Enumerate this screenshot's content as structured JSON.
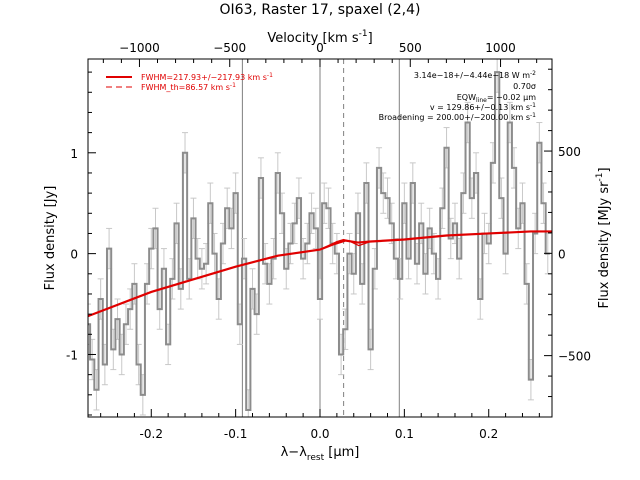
{
  "chart_data": {
    "type": "line",
    "title": "OI63, Raster 17, spaxel (2,4)",
    "xlabel": "λ−λ",
    "xlabel_sub": "rest",
    "xlabel_unit": " [μm]",
    "ylabel": "Flux density [Jy]",
    "top_axis_label": "Velocity [km s",
    "top_axis_label_sup": "-1",
    "top_axis_label_tail": "]",
    "right_axis_label": "Flux density [MJy sr",
    "right_axis_label_sup": "-1",
    "right_axis_label_tail": "]",
    "xlim": [
      -0.275,
      0.275
    ],
    "ylim": [
      -1.62,
      1.93
    ],
    "top_xlim": [
      -1285,
      1285
    ],
    "right_ylim": [
      -800,
      950
    ],
    "x_ticks": [
      "-0.2",
      "-0.1",
      "0.0",
      "0.1",
      "0.2"
    ],
    "x_tick_values": [
      -0.2,
      -0.1,
      0.0,
      0.1,
      0.2
    ],
    "y_ticks": [
      "-1",
      "0",
      "1"
    ],
    "y_tick_values": [
      -1,
      0,
      1
    ],
    "top_ticks": [
      "−1000",
      "−500",
      "0",
      "500",
      "1000"
    ],
    "top_tick_values": [
      -1000,
      -500,
      0,
      500,
      1000
    ],
    "right_ticks": [
      "−500",
      "0",
      "500"
    ],
    "right_tick_values": [
      -500,
      0,
      500
    ],
    "vertical_lines_solid": [
      -0.092,
      0.0,
      0.094
    ],
    "vertical_lines_dashed": [
      0.028
    ],
    "legend": [
      {
        "label": "FWHM=217.93+/−217.93 km s",
        "sup": "-1",
        "style": "solid"
      },
      {
        "label": "FWHM_th=86.57 km s",
        "sup": "-1",
        "style": "dashed"
      }
    ],
    "annotations": [
      "3.14e−18+/−4.44e−18 W m",
      "0.70σ",
      "EQW",
      "= −0.02 μm",
      "v = 129.86+/−0.13 km s",
      "Broadening = 200.00+/−200.00 km s"
    ],
    "annotation_sups": [
      "-2",
      "-1",
      "-1"
    ],
    "annotation_sub": "line",
    "colors": {
      "data": "#8c8c8c",
      "errorbar": "#c8c8c8",
      "model": "#e00000",
      "axis": "#000000",
      "grid": "#808080"
    },
    "series": [
      {
        "name": "Flux density",
        "style": "step",
        "x": [
          -0.275,
          -0.27,
          -0.265,
          -0.26,
          -0.255,
          -0.25,
          -0.245,
          -0.24,
          -0.235,
          -0.23,
          -0.225,
          -0.22,
          -0.215,
          -0.21,
          -0.205,
          -0.2,
          -0.195,
          -0.19,
          -0.185,
          -0.18,
          -0.175,
          -0.17,
          -0.165,
          -0.16,
          -0.155,
          -0.15,
          -0.145,
          -0.14,
          -0.135,
          -0.13,
          -0.125,
          -0.12,
          -0.115,
          -0.11,
          -0.105,
          -0.1,
          -0.095,
          -0.09,
          -0.085,
          -0.08,
          -0.075,
          -0.07,
          -0.065,
          -0.06,
          -0.055,
          -0.05,
          -0.045,
          -0.04,
          -0.035,
          -0.03,
          -0.025,
          -0.02,
          -0.015,
          -0.01,
          -0.005,
          0.0,
          0.005,
          0.01,
          0.015,
          0.02,
          0.025,
          0.03,
          0.035,
          0.04,
          0.045,
          0.05,
          0.055,
          0.06,
          0.065,
          0.07,
          0.075,
          0.08,
          0.085,
          0.09,
          0.095,
          0.1,
          0.105,
          0.11,
          0.115,
          0.12,
          0.125,
          0.13,
          0.135,
          0.14,
          0.145,
          0.15,
          0.155,
          0.16,
          0.165,
          0.17,
          0.175,
          0.18,
          0.185,
          0.19,
          0.195,
          0.2,
          0.205,
          0.21,
          0.215,
          0.22,
          0.225,
          0.23,
          0.235,
          0.24,
          0.245,
          0.25,
          0.255,
          0.26,
          0.265,
          0.27
        ],
        "y": [
          -0.7,
          -1.05,
          -1.35,
          -0.45,
          -1.1,
          0.05,
          -0.95,
          -0.65,
          -1.0,
          -0.7,
          -0.55,
          -0.3,
          -1.1,
          -1.4,
          -0.3,
          0.05,
          0.25,
          -0.55,
          -0.15,
          -0.9,
          -0.25,
          0.3,
          -0.35,
          1.0,
          -0.25,
          0.35,
          -0.05,
          -0.15,
          -0.1,
          0.5,
          0.0,
          -0.45,
          0.1,
          0.45,
          0.25,
          0.6,
          -0.7,
          -0.05,
          -1.55,
          -0.35,
          -0.6,
          0.75,
          -0.1,
          -0.3,
          -0.05,
          0.8,
          0.4,
          -0.15,
          0.1,
          0.3,
          0.55,
          -0.05,
          0.1,
          0.4,
          0.25,
          -0.45,
          0.5,
          0.45,
          0.1,
          0.0,
          -1.0,
          -0.75,
          0.0,
          -0.2,
          0.4,
          -0.3,
          0.7,
          -0.95,
          -0.15,
          0.85,
          0.6,
          0.55,
          0.3,
          -0.05,
          -0.25,
          0.5,
          -0.05,
          0.7,
          -0.1,
          0.3,
          -0.2,
          0.25,
          0.0,
          -0.25,
          0.45,
          1.05,
          0.15,
          0.3,
          -0.05,
          0.6,
          1.3,
          0.55,
          0.8,
          -0.45,
          0.2,
          0.1,
          0.9,
          1.8,
          0.55,
          0.0,
          1.3,
          0.85,
          0.25,
          0.5,
          -0.3,
          -1.25,
          0.2,
          1.1,
          0.5,
          0.0
        ],
        "y_err": 0.2
      },
      {
        "name": "Model",
        "style": "line",
        "x": [
          -0.275,
          -0.2,
          -0.1,
          -0.05,
          0.0,
          0.015,
          0.03,
          0.045,
          0.06,
          0.1,
          0.15,
          0.2,
          0.25,
          0.275
        ],
        "y": [
          -0.62,
          -0.38,
          -0.13,
          -0.02,
          0.04,
          0.09,
          0.13,
          0.11,
          0.12,
          0.14,
          0.18,
          0.2,
          0.22,
          0.22
        ]
      },
      {
        "name": "Line profile",
        "style": "line",
        "x": [
          0.0,
          0.01,
          0.02,
          0.028,
          0.036,
          0.046,
          0.06
        ],
        "y": [
          0.04,
          0.08,
          0.12,
          0.14,
          0.12,
          0.08,
          0.12
        ]
      }
    ]
  }
}
